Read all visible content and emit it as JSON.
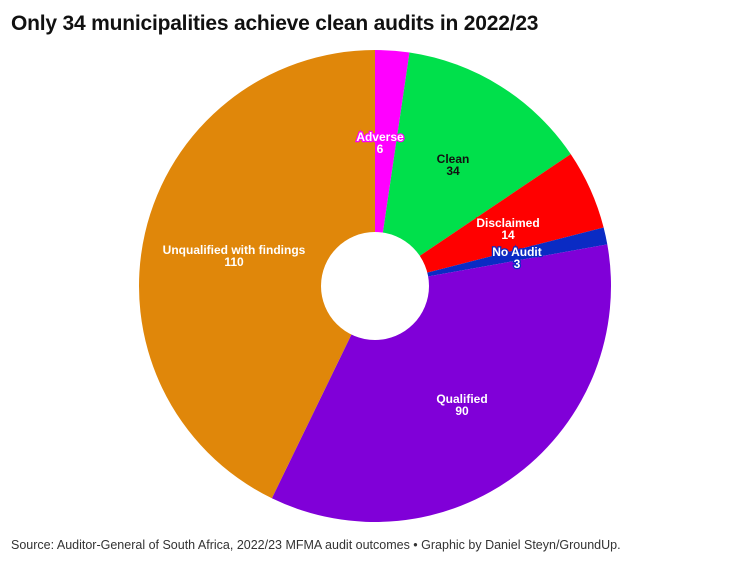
{
  "title": "Only 34 municipalities achieve clean audits in 2022/23",
  "footer": "Source: Auditor-General of South Africa, 2022/23 MFMA audit outcomes • Graphic by Daniel Steyn/GroundUp.",
  "chart_data": {
    "type": "pie",
    "donut": true,
    "title": "Only 34 municipalities achieve clean audits in 2022/23",
    "categories": [
      "Adverse",
      "Clean",
      "Disclaimed",
      "No Audit",
      "Qualified",
      "Unqualified with findings"
    ],
    "values": [
      6,
      34,
      14,
      3,
      90,
      110
    ],
    "colors": [
      "#ff00ff",
      "#00e04b",
      "#ff0000",
      "#0a2bc4",
      "#8000d8",
      "#e0870a"
    ],
    "label_colors": [
      "#ffffff",
      "#111111",
      "#ffffff",
      "#ffffff",
      "#ffffff",
      "#ffffff"
    ],
    "total": 257,
    "start_angle_deg": 0,
    "direction": "clockwise",
    "legend": "none (direct labels)",
    "source": "Auditor-General of South Africa, 2022/23 MFMA audit outcomes"
  }
}
